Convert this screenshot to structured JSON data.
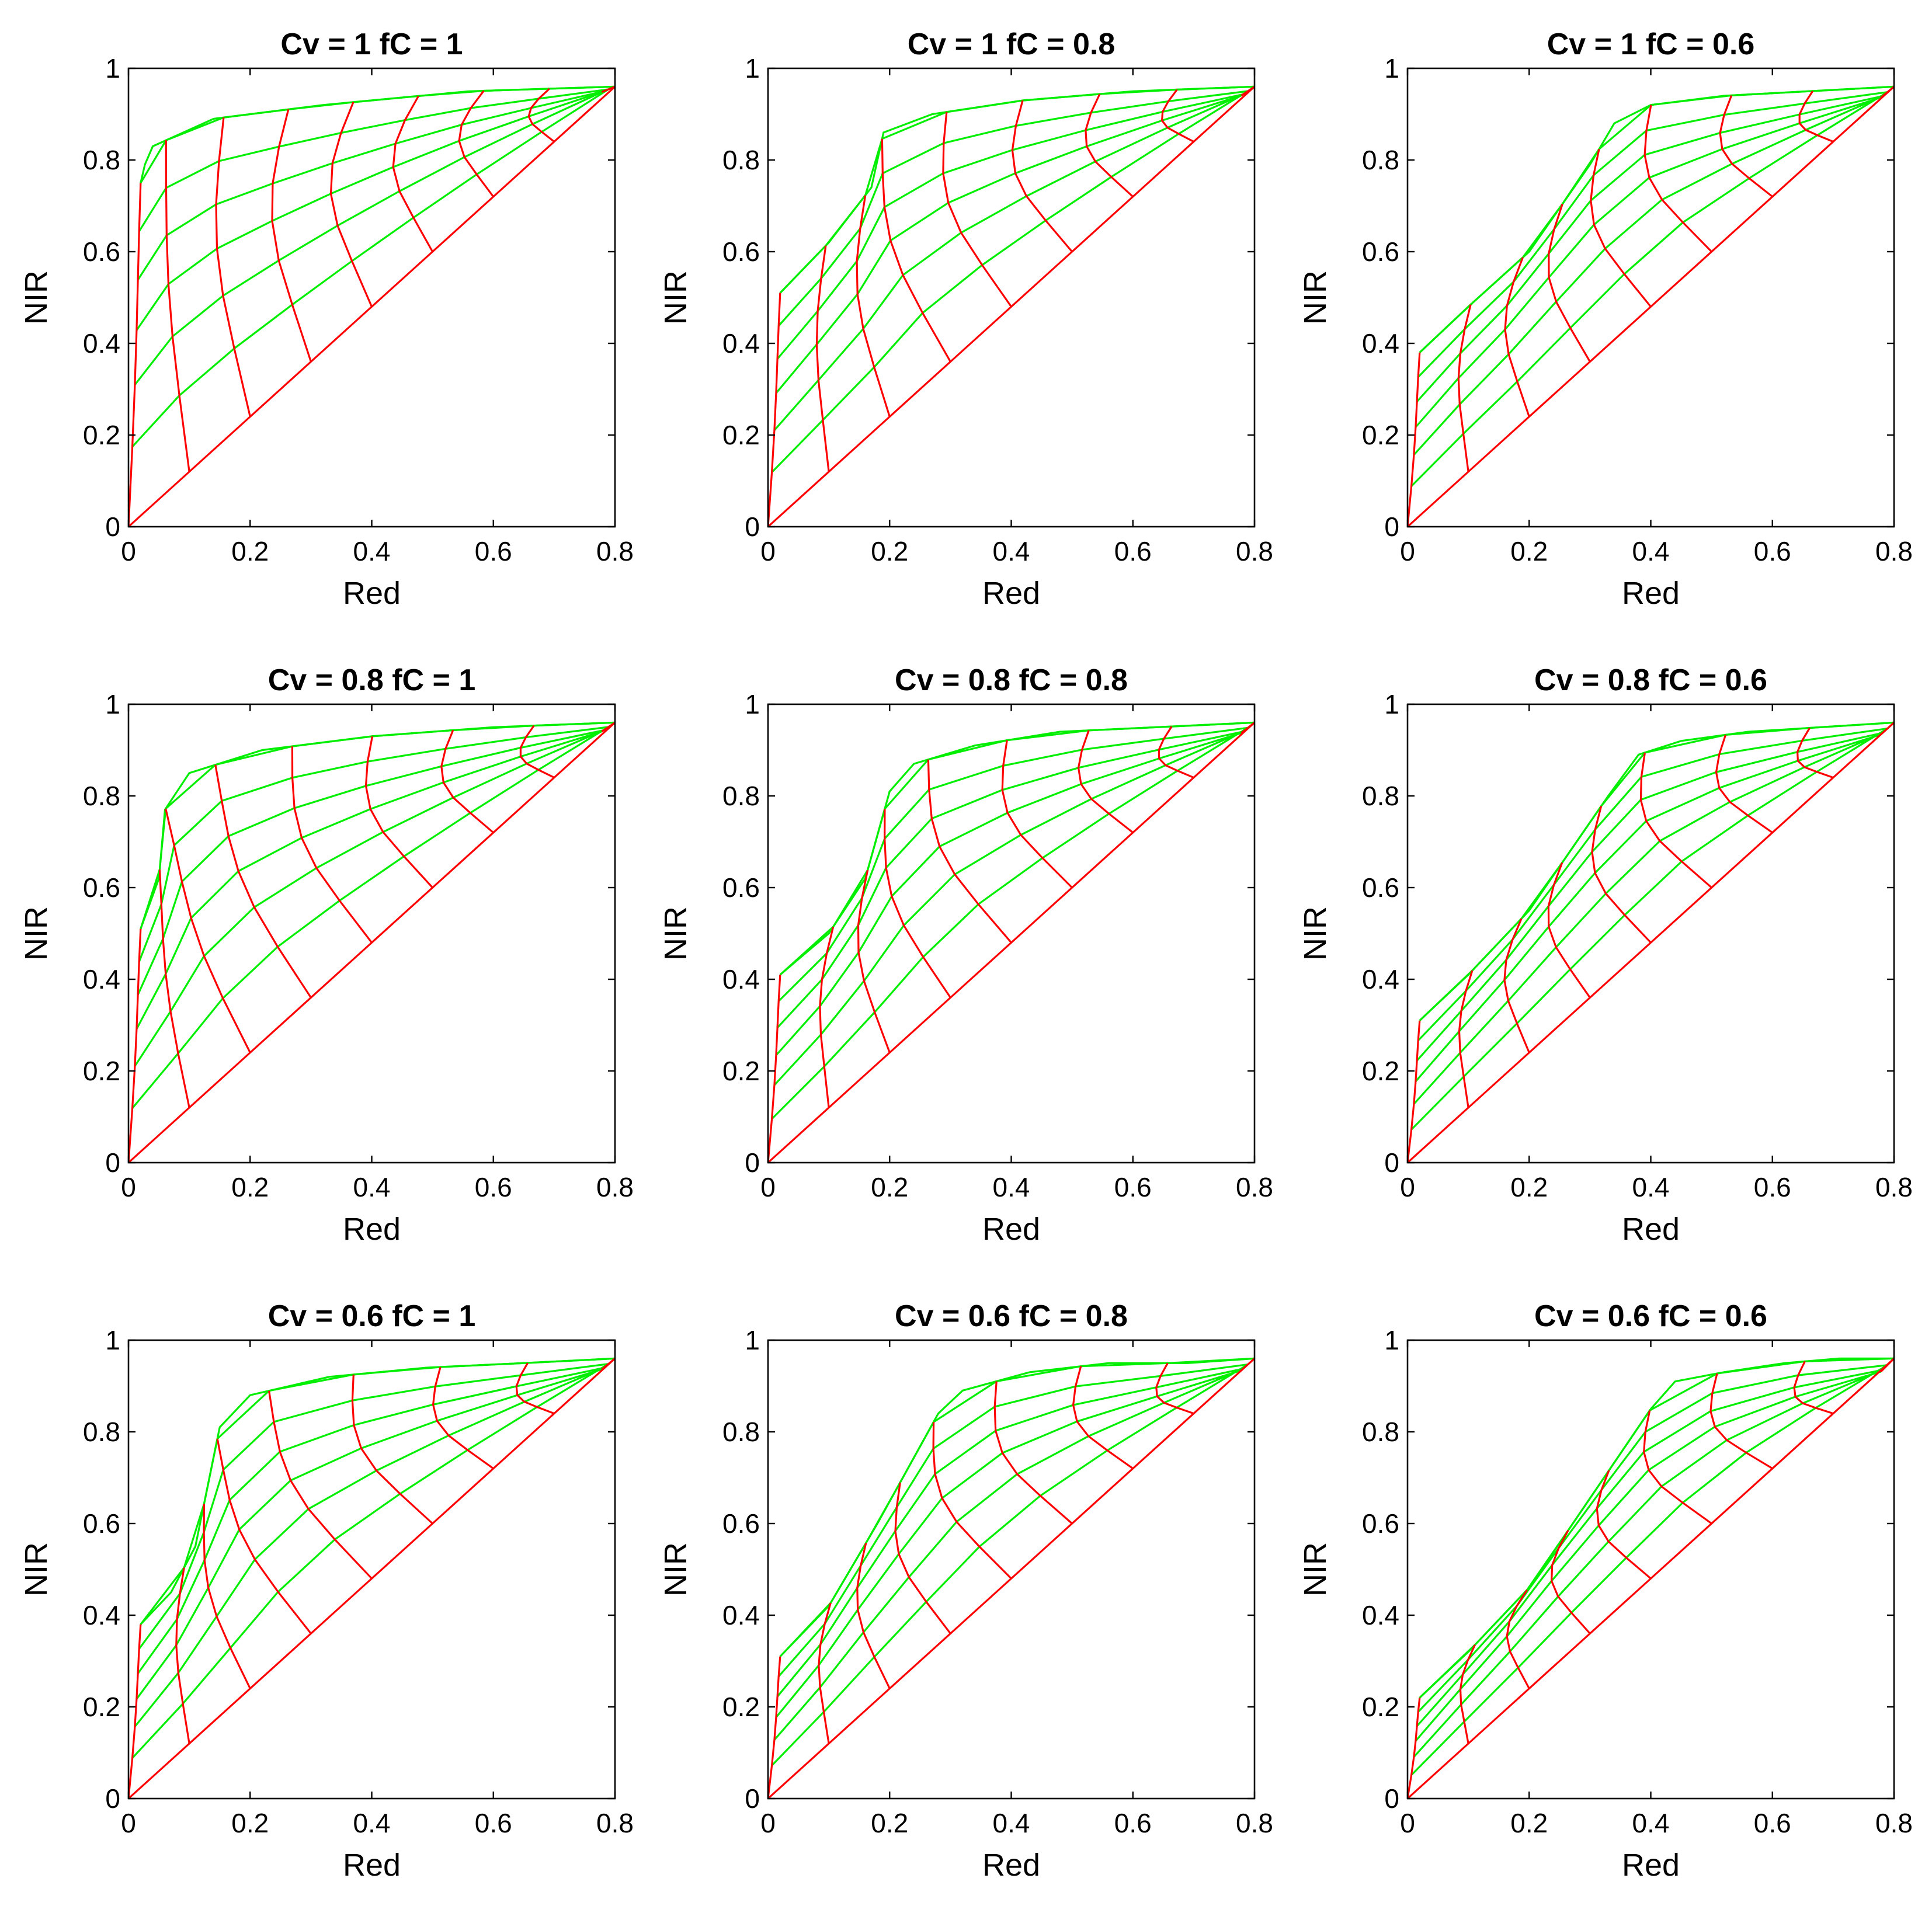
{
  "chart_data": {
    "type": "line",
    "layout": "3x3 grid",
    "xlabel": "Red",
    "ylabel": "NIR",
    "xlim": [
      0,
      0.8
    ],
    "ylim": [
      0,
      1
    ],
    "xticks": [
      "0",
      "0.2",
      "0.4",
      "0.6",
      "0.8"
    ],
    "yticks": [
      "0",
      "0.2",
      "0.4",
      "0.6",
      "0.8",
      "1"
    ],
    "grid": false,
    "colors": {
      "soil_lines": "#ff0000",
      "isolines": "#00ee00",
      "axes": "#000000"
    },
    "soil_line_endpoints": [
      [
        0.1,
        0.12
      ],
      [
        0.2,
        0.24
      ],
      [
        0.3,
        0.36
      ],
      [
        0.4,
        0.48
      ],
      [
        0.5,
        0.6
      ],
      [
        0.6,
        0.72
      ],
      [
        0.7,
        0.84
      ],
      [
        0.8,
        0.96
      ]
    ],
    "panels": [
      {
        "title": "Cv = 1    fC = 1",
        "Cv": 1,
        "fC": 1,
        "vegetation_red": 0.02,
        "vegetation_nir": 0.75,
        "veg_ramp": [
          [
            0.02,
            0.75
          ],
          [
            0.027,
            0.79
          ],
          [
            0.04,
            0.83
          ],
          [
            0.14,
            0.89
          ],
          [
            0.32,
            0.92
          ],
          [
            0.56,
            0.95
          ],
          [
            0.8,
            0.96
          ]
        ]
      },
      {
        "title": "Cv = 1    fC = 0.8",
        "Cv": 1,
        "fC": 0.8,
        "vegetation_red": 0.02,
        "vegetation_nir": 0.51,
        "veg_ramp": [
          [
            0.02,
            0.51
          ],
          [
            0.1,
            0.62
          ],
          [
            0.17,
            0.74
          ],
          [
            0.19,
            0.86
          ],
          [
            0.27,
            0.9
          ],
          [
            0.42,
            0.93
          ],
          [
            0.6,
            0.95
          ],
          [
            0.8,
            0.96
          ]
        ]
      },
      {
        "title": "Cv = 1    fC = 0.6",
        "Cv": 1,
        "fC": 0.6,
        "vegetation_red": 0.02,
        "vegetation_nir": 0.38,
        "veg_ramp": [
          [
            0.02,
            0.38
          ],
          [
            0.1,
            0.48
          ],
          [
            0.2,
            0.6
          ],
          [
            0.3,
            0.79
          ],
          [
            0.34,
            0.88
          ],
          [
            0.4,
            0.92
          ],
          [
            0.52,
            0.94
          ],
          [
            0.66,
            0.95
          ],
          [
            0.8,
            0.96
          ]
        ]
      },
      {
        "title": "Cv = 0.8    fC = 1",
        "Cv": 0.8,
        "fC": 1,
        "vegetation_red": 0.02,
        "vegetation_nir": 0.51,
        "veg_ramp": [
          [
            0.02,
            0.51
          ],
          [
            0.05,
            0.62
          ],
          [
            0.06,
            0.77
          ],
          [
            0.1,
            0.85
          ],
          [
            0.22,
            0.9
          ],
          [
            0.4,
            0.93
          ],
          [
            0.6,
            0.95
          ],
          [
            0.8,
            0.96
          ]
        ]
      },
      {
        "title": "Cv = 0.8    fC = 0.8",
        "Cv": 0.8,
        "fC": 0.8,
        "vegetation_red": 0.02,
        "vegetation_nir": 0.41,
        "veg_ramp": [
          [
            0.02,
            0.41
          ],
          [
            0.1,
            0.5
          ],
          [
            0.16,
            0.62
          ],
          [
            0.2,
            0.81
          ],
          [
            0.24,
            0.87
          ],
          [
            0.34,
            0.91
          ],
          [
            0.48,
            0.94
          ],
          [
            0.64,
            0.95
          ],
          [
            0.8,
            0.96
          ]
        ]
      },
      {
        "title": "Cv = 0.8    fC = 0.6",
        "Cv": 0.8,
        "fC": 0.6,
        "vegetation_red": 0.02,
        "vegetation_nir": 0.31,
        "veg_ramp": [
          [
            0.02,
            0.31
          ],
          [
            0.1,
            0.41
          ],
          [
            0.2,
            0.55
          ],
          [
            0.33,
            0.8
          ],
          [
            0.38,
            0.89
          ],
          [
            0.45,
            0.92
          ],
          [
            0.56,
            0.94
          ],
          [
            0.68,
            0.95
          ],
          [
            0.8,
            0.96
          ]
        ]
      },
      {
        "title": "Cv = 0.6    fC = 1",
        "Cv": 0.6,
        "fC": 1,
        "vegetation_red": 0.02,
        "vegetation_nir": 0.38,
        "veg_ramp": [
          [
            0.02,
            0.38
          ],
          [
            0.07,
            0.45
          ],
          [
            0.11,
            0.55
          ],
          [
            0.15,
            0.81
          ],
          [
            0.2,
            0.88
          ],
          [
            0.33,
            0.92
          ],
          [
            0.49,
            0.94
          ],
          [
            0.65,
            0.95
          ],
          [
            0.8,
            0.96
          ]
        ]
      },
      {
        "title": "Cv = 0.6    fC = 0.8",
        "Cv": 0.6,
        "fC": 0.8,
        "vegetation_red": 0.02,
        "vegetation_nir": 0.31,
        "veg_ramp": [
          [
            0.02,
            0.31
          ],
          [
            0.1,
            0.42
          ],
          [
            0.18,
            0.6
          ],
          [
            0.28,
            0.84
          ],
          [
            0.32,
            0.89
          ],
          [
            0.43,
            0.93
          ],
          [
            0.56,
            0.95
          ],
          [
            0.69,
            0.95
          ],
          [
            0.8,
            0.96
          ]
        ]
      },
      {
        "title": "Cv = 0.6    fC = 0.6",
        "Cv": 0.6,
        "fC": 0.6,
        "vegetation_red": 0.02,
        "vegetation_nir": 0.22,
        "veg_ramp": [
          [
            0.02,
            0.22
          ],
          [
            0.1,
            0.32
          ],
          [
            0.2,
            0.46
          ],
          [
            0.4,
            0.85
          ],
          [
            0.44,
            0.91
          ],
          [
            0.52,
            0.93
          ],
          [
            0.62,
            0.95
          ],
          [
            0.71,
            0.96
          ],
          [
            0.8,
            0.96
          ]
        ]
      }
    ]
  }
}
